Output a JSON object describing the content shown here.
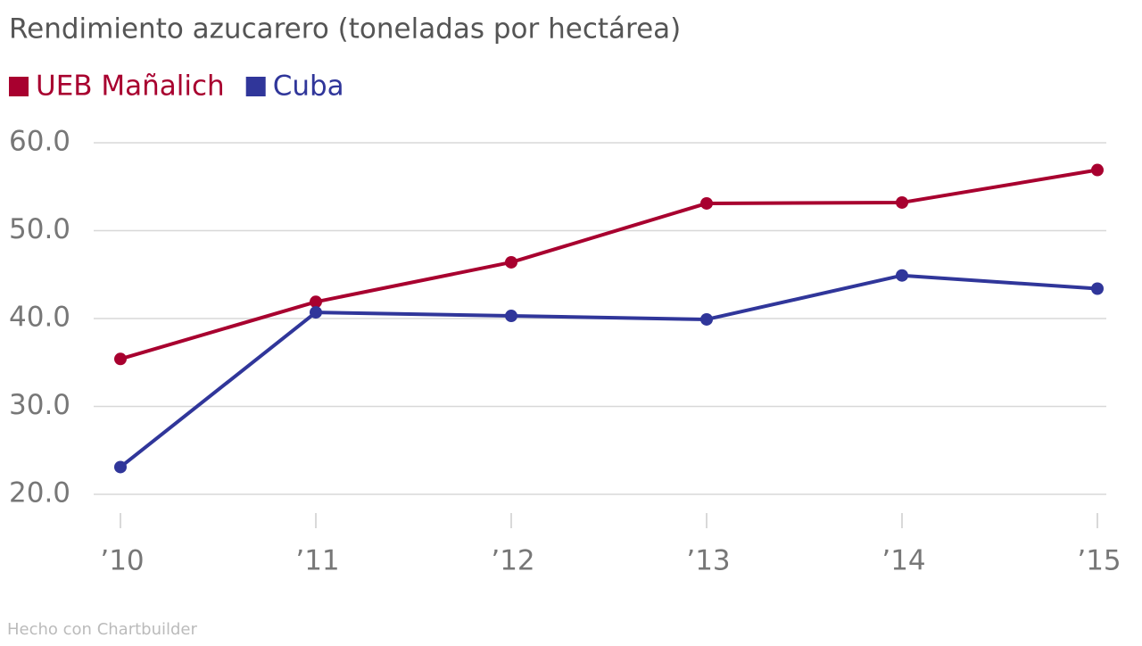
{
  "chart_data": {
    "type": "line",
    "title": "Rendimiento azucarero (toneladas por hectárea)",
    "source": "Hecho con Chartbuilder",
    "categories": [
      "’10",
      "’11",
      "’12",
      "’13",
      "’14",
      "’15"
    ],
    "series": [
      {
        "name": "UEB Mañalich",
        "color": "#a8002f",
        "values": [
          35.4,
          41.9,
          46.4,
          53.1,
          53.2,
          56.9
        ]
      },
      {
        "name": "Cuba",
        "color": "#30369a",
        "values": [
          23.1,
          40.7,
          40.3,
          39.9,
          44.9,
          43.4
        ]
      }
    ],
    "ylim": [
      20,
      60
    ],
    "yticks": [
      {
        "value": 20,
        "label": "20.0"
      },
      {
        "value": 30,
        "label": "30.0"
      },
      {
        "value": 40,
        "label": "40.0"
      },
      {
        "value": 50,
        "label": "50.0"
      },
      {
        "value": 60,
        "label": "60.0"
      }
    ],
    "grid": true
  }
}
